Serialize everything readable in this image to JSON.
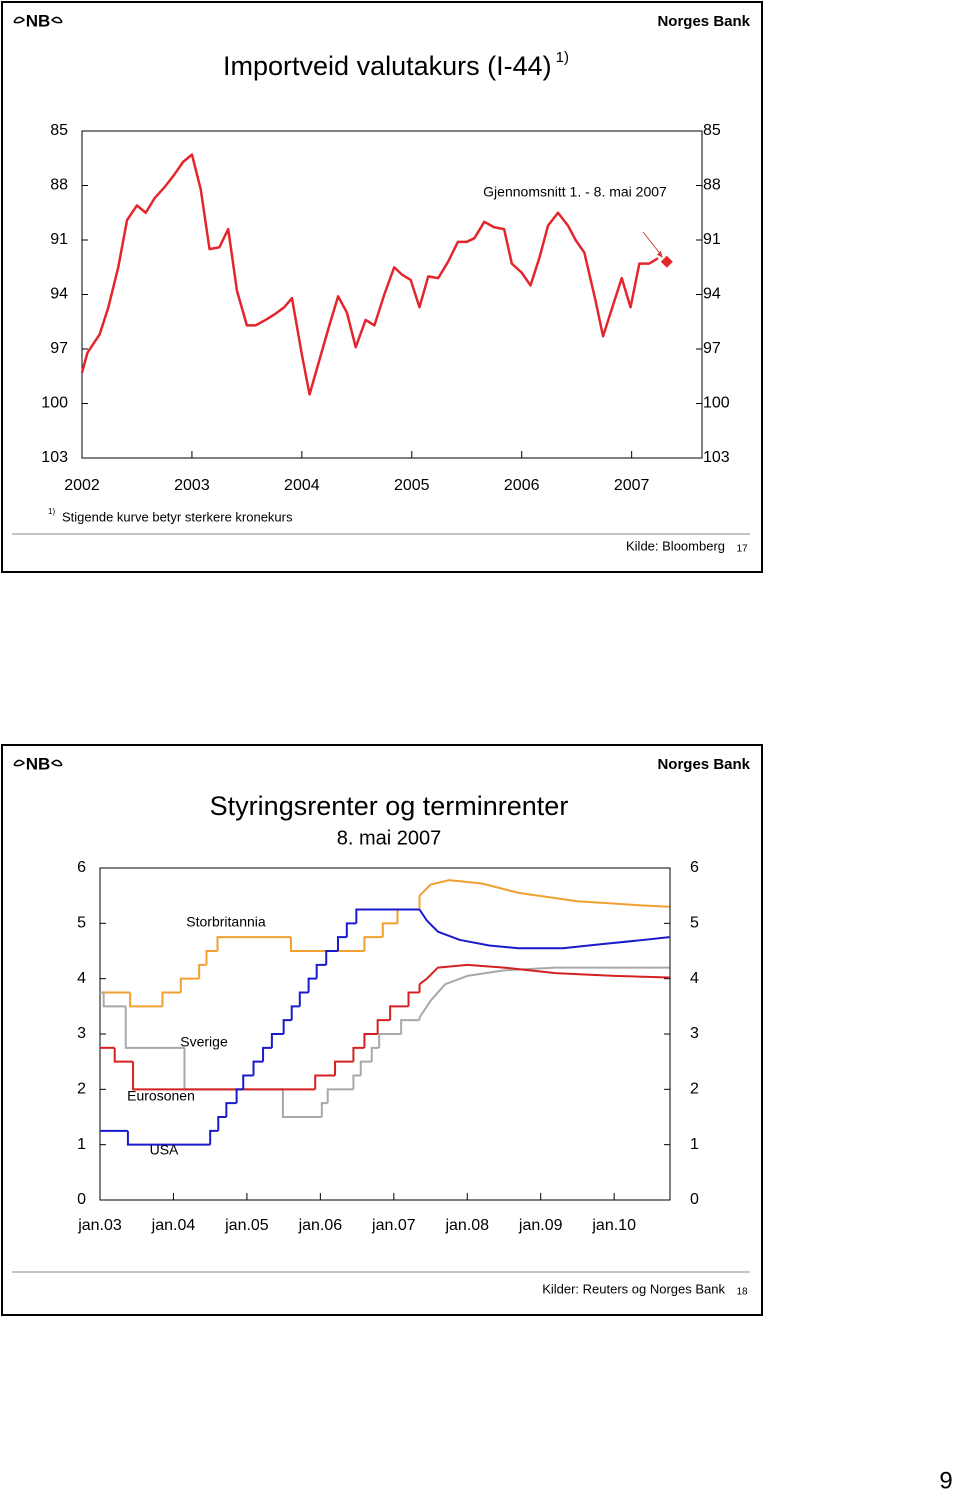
{
  "page_number": "9",
  "slides": [
    {
      "logo": "NB",
      "bank": "Norges Bank",
      "footnote": {
        "marker": "1)",
        "text": "Stigende kurve betyr sterkere kronekurs"
      },
      "source": "Kilde: Bloomberg",
      "slide_number": "17"
    },
    {
      "logo": "NB",
      "bank": "Norges Bank",
      "source": "Kilder: Reuters og Norges Bank",
      "slide_number": "18"
    }
  ],
  "chart_data": [
    {
      "type": "line",
      "title": "Importveid valutakurs (I-44)",
      "title_note": "1)",
      "color": "#e3262c",
      "x": [
        2002.0,
        2002.05,
        2002.16,
        2002.24,
        2002.33,
        2002.41,
        2002.5,
        2002.58,
        2002.66,
        2002.75,
        2002.84,
        2002.92,
        2003.0,
        2003.08,
        2003.16,
        2003.25,
        2003.33,
        2003.41,
        2003.5,
        2003.58,
        2003.67,
        2003.75,
        2003.84,
        2003.91,
        2004.0,
        2004.07,
        2004.16,
        2004.25,
        2004.33,
        2004.41,
        2004.49,
        2004.58,
        2004.66,
        2004.75,
        2004.84,
        2004.91,
        2004.99,
        2005.07,
        2005.15,
        2005.24,
        2005.33,
        2005.42,
        2005.5,
        2005.57,
        2005.66,
        2005.75,
        2005.84,
        2005.91,
        2006.0,
        2006.08,
        2006.16,
        2006.24,
        2006.33,
        2006.42,
        2006.49,
        2006.57,
        2006.67,
        2006.74,
        2006.83,
        2006.91,
        2006.99,
        2007.07,
        2007.16,
        2007.24
      ],
      "values": [
        98.3,
        97.2,
        96.2,
        94.7,
        92.5,
        89.9,
        89.1,
        89.5,
        88.7,
        88.1,
        87.4,
        86.7,
        86.3,
        88.2,
        91.5,
        91.4,
        90.4,
        93.8,
        95.7,
        95.7,
        95.4,
        95.1,
        94.7,
        94.2,
        97.3,
        99.5,
        97.6,
        95.7,
        94.1,
        95.0,
        96.9,
        95.4,
        95.7,
        94.0,
        92.5,
        92.9,
        93.2,
        94.7,
        93.0,
        93.1,
        92.2,
        91.1,
        91.1,
        90.9,
        90.0,
        90.3,
        90.4,
        92.3,
        92.8,
        93.5,
        92.0,
        90.2,
        89.5,
        90.2,
        91.0,
        91.7,
        94.3,
        96.3,
        94.6,
        93.1,
        94.7,
        92.3,
        92.3,
        92.0
      ],
      "annotation": {
        "text": "Gjennomsnitt 1. - 8. mai 2007",
        "x": 2007.32,
        "value": 92.2
      },
      "xlim": [
        2002,
        2007.64
      ],
      "xticks": [
        2002,
        2003,
        2004,
        2005,
        2006,
        2007
      ],
      "ylim": [
        103,
        85
      ],
      "yticks": [
        85,
        88,
        91,
        94,
        97,
        100,
        103
      ],
      "y2lim": [
        103,
        85
      ],
      "y2ticks": [
        85,
        88,
        91,
        94,
        97,
        100,
        103
      ]
    },
    {
      "type": "step",
      "title": "Styringsrenter og terminrenter",
      "subtitle": "8. mai 2007",
      "series": [
        {
          "name": "Storbritannia",
          "color": "#f0a030",
          "step_x": [
            2003.0,
            2003.41,
            2003.85,
            2004.1,
            2004.35,
            2004.45,
            2004.6,
            2005.6,
            2006.6,
            2006.85,
            2007.05
          ],
          "step_values": [
            3.75,
            3.5,
            3.75,
            4.0,
            4.25,
            4.5,
            4.75,
            4.5,
            4.75,
            5.0,
            5.25
          ],
          "curve_x": [
            2007.35,
            2007.5,
            2007.75,
            2008.2,
            2008.7,
            2009.5,
            2010.3,
            2010.75
          ],
          "curve_values": [
            5.5,
            5.7,
            5.78,
            5.72,
            5.55,
            5.4,
            5.33,
            5.3
          ]
        },
        {
          "name": "Sverige",
          "color": "#a8a8a8",
          "step_x": [
            2003.0,
            2003.05,
            2003.35,
            2004.15,
            2005.49,
            2006.02,
            2006.1,
            2006.45,
            2006.55,
            2006.7,
            2006.8,
            2007.1
          ],
          "step_values": [
            3.75,
            3.5,
            2.75,
            2.0,
            1.5,
            1.75,
            2.0,
            2.25,
            2.5,
            2.75,
            3.0,
            3.25
          ],
          "curve_x": [
            2007.35,
            2007.5,
            2007.7,
            2008.0,
            2008.5,
            2009.2,
            2010.75
          ],
          "curve_values": [
            3.3,
            3.6,
            3.9,
            4.05,
            4.15,
            4.2,
            4.2
          ]
        },
        {
          "name": "Eurosonen",
          "color": "#d42020",
          "step_x": [
            2003.0,
            2003.2,
            2003.45,
            2005.93,
            2006.2,
            2006.45,
            2006.6,
            2006.78,
            2006.95,
            2007.2
          ],
          "step_values": [
            2.75,
            2.5,
            2.0,
            2.25,
            2.5,
            2.75,
            3.0,
            3.25,
            3.5,
            3.75
          ],
          "curve_x": [
            2007.35,
            2007.45,
            2007.6,
            2008.0,
            2008.5,
            2009.2,
            2010.0,
            2010.75
          ],
          "curve_values": [
            3.9,
            4.0,
            4.2,
            4.25,
            4.2,
            4.1,
            4.05,
            4.02
          ]
        },
        {
          "name": "USA",
          "color": "#1a1acc",
          "step_x": [
            2003.0,
            2003.38,
            2004.5,
            2004.61,
            2004.72,
            2004.86,
            2004.95,
            2005.09,
            2005.22,
            2005.34,
            2005.5,
            2005.61,
            2005.72,
            2005.84,
            2005.95,
            2006.08,
            2006.24,
            2006.36,
            2006.49
          ],
          "step_values": [
            1.25,
            1.0,
            1.25,
            1.5,
            1.75,
            2.0,
            2.25,
            2.5,
            2.75,
            3.0,
            3.25,
            3.5,
            3.75,
            4.0,
            4.25,
            4.5,
            4.75,
            5.0,
            5.25
          ],
          "curve_x": [
            2007.35,
            2007.45,
            2007.6,
            2007.9,
            2008.3,
            2008.7,
            2009.3,
            2009.8,
            2010.4,
            2010.75
          ],
          "curve_values": [
            5.25,
            5.05,
            4.85,
            4.7,
            4.6,
            4.55,
            4.55,
            4.62,
            4.7,
            4.75
          ]
        }
      ],
      "xlim": [
        2003,
        2010.76
      ],
      "xticks": [
        {
          "value": 2003,
          "label": "jan.03"
        },
        {
          "value": 2004,
          "label": "jan.04"
        },
        {
          "value": 2005,
          "label": "jan.05"
        },
        {
          "value": 2006,
          "label": "jan.06"
        },
        {
          "value": 2007,
          "label": "jan.07"
        },
        {
          "value": 2008,
          "label": "jan.08"
        },
        {
          "value": 2009,
          "label": "jan.09"
        },
        {
          "value": 2010,
          "label": "jan.10"
        }
      ],
      "ylim": [
        0,
        6
      ],
      "yticks": [
        0,
        1,
        2,
        3,
        4,
        5,
        6
      ],
      "y2lim": [
        0,
        6
      ],
      "y2ticks": [
        0,
        1,
        2,
        3,
        4,
        5,
        6
      ]
    }
  ]
}
